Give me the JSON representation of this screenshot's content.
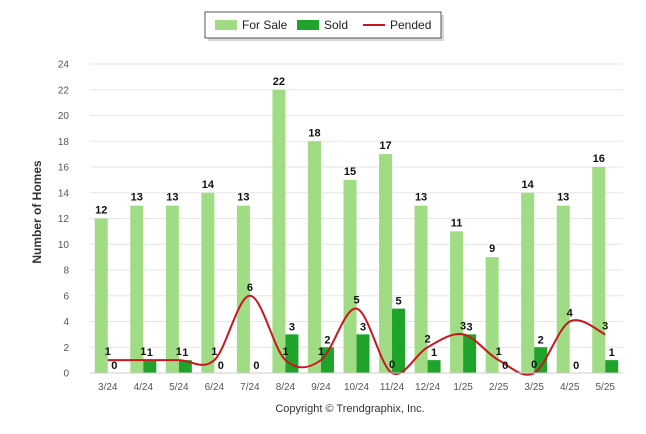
{
  "chart_data": {
    "type": "bar",
    "ylabel": "Number of Homes",
    "ylim": [
      0,
      24
    ],
    "yticks": [
      0,
      2,
      4,
      6,
      8,
      10,
      12,
      14,
      16,
      18,
      20,
      22,
      24
    ],
    "grid": true,
    "legend_position": "top-center",
    "categories": [
      "3/24",
      "4/24",
      "5/24",
      "6/24",
      "7/24",
      "8/24",
      "9/24",
      "10/24",
      "11/24",
      "12/24",
      "1/25",
      "2/25",
      "3/25",
      "4/25",
      "5/25"
    ],
    "series": [
      {
        "name": "For Sale",
        "kind": "bar",
        "color": "#9fdc84",
        "values": [
          12,
          13,
          13,
          14,
          13,
          22,
          18,
          15,
          17,
          13,
          11,
          9,
          14,
          13,
          16
        ]
      },
      {
        "name": "Sold",
        "kind": "bar",
        "color": "#1fa32a",
        "values": [
          0,
          1,
          1,
          0,
          0,
          3,
          2,
          3,
          5,
          1,
          3,
          0,
          2,
          0,
          1
        ]
      },
      {
        "name": "Pended",
        "kind": "line",
        "color": "#c8171e",
        "values": [
          1,
          1,
          1,
          1,
          6,
          1,
          1,
          5,
          0,
          2,
          3,
          1,
          0,
          4,
          3
        ]
      }
    ]
  },
  "footer": {
    "copyright": "Copyright © Trendgraphix, Inc."
  }
}
